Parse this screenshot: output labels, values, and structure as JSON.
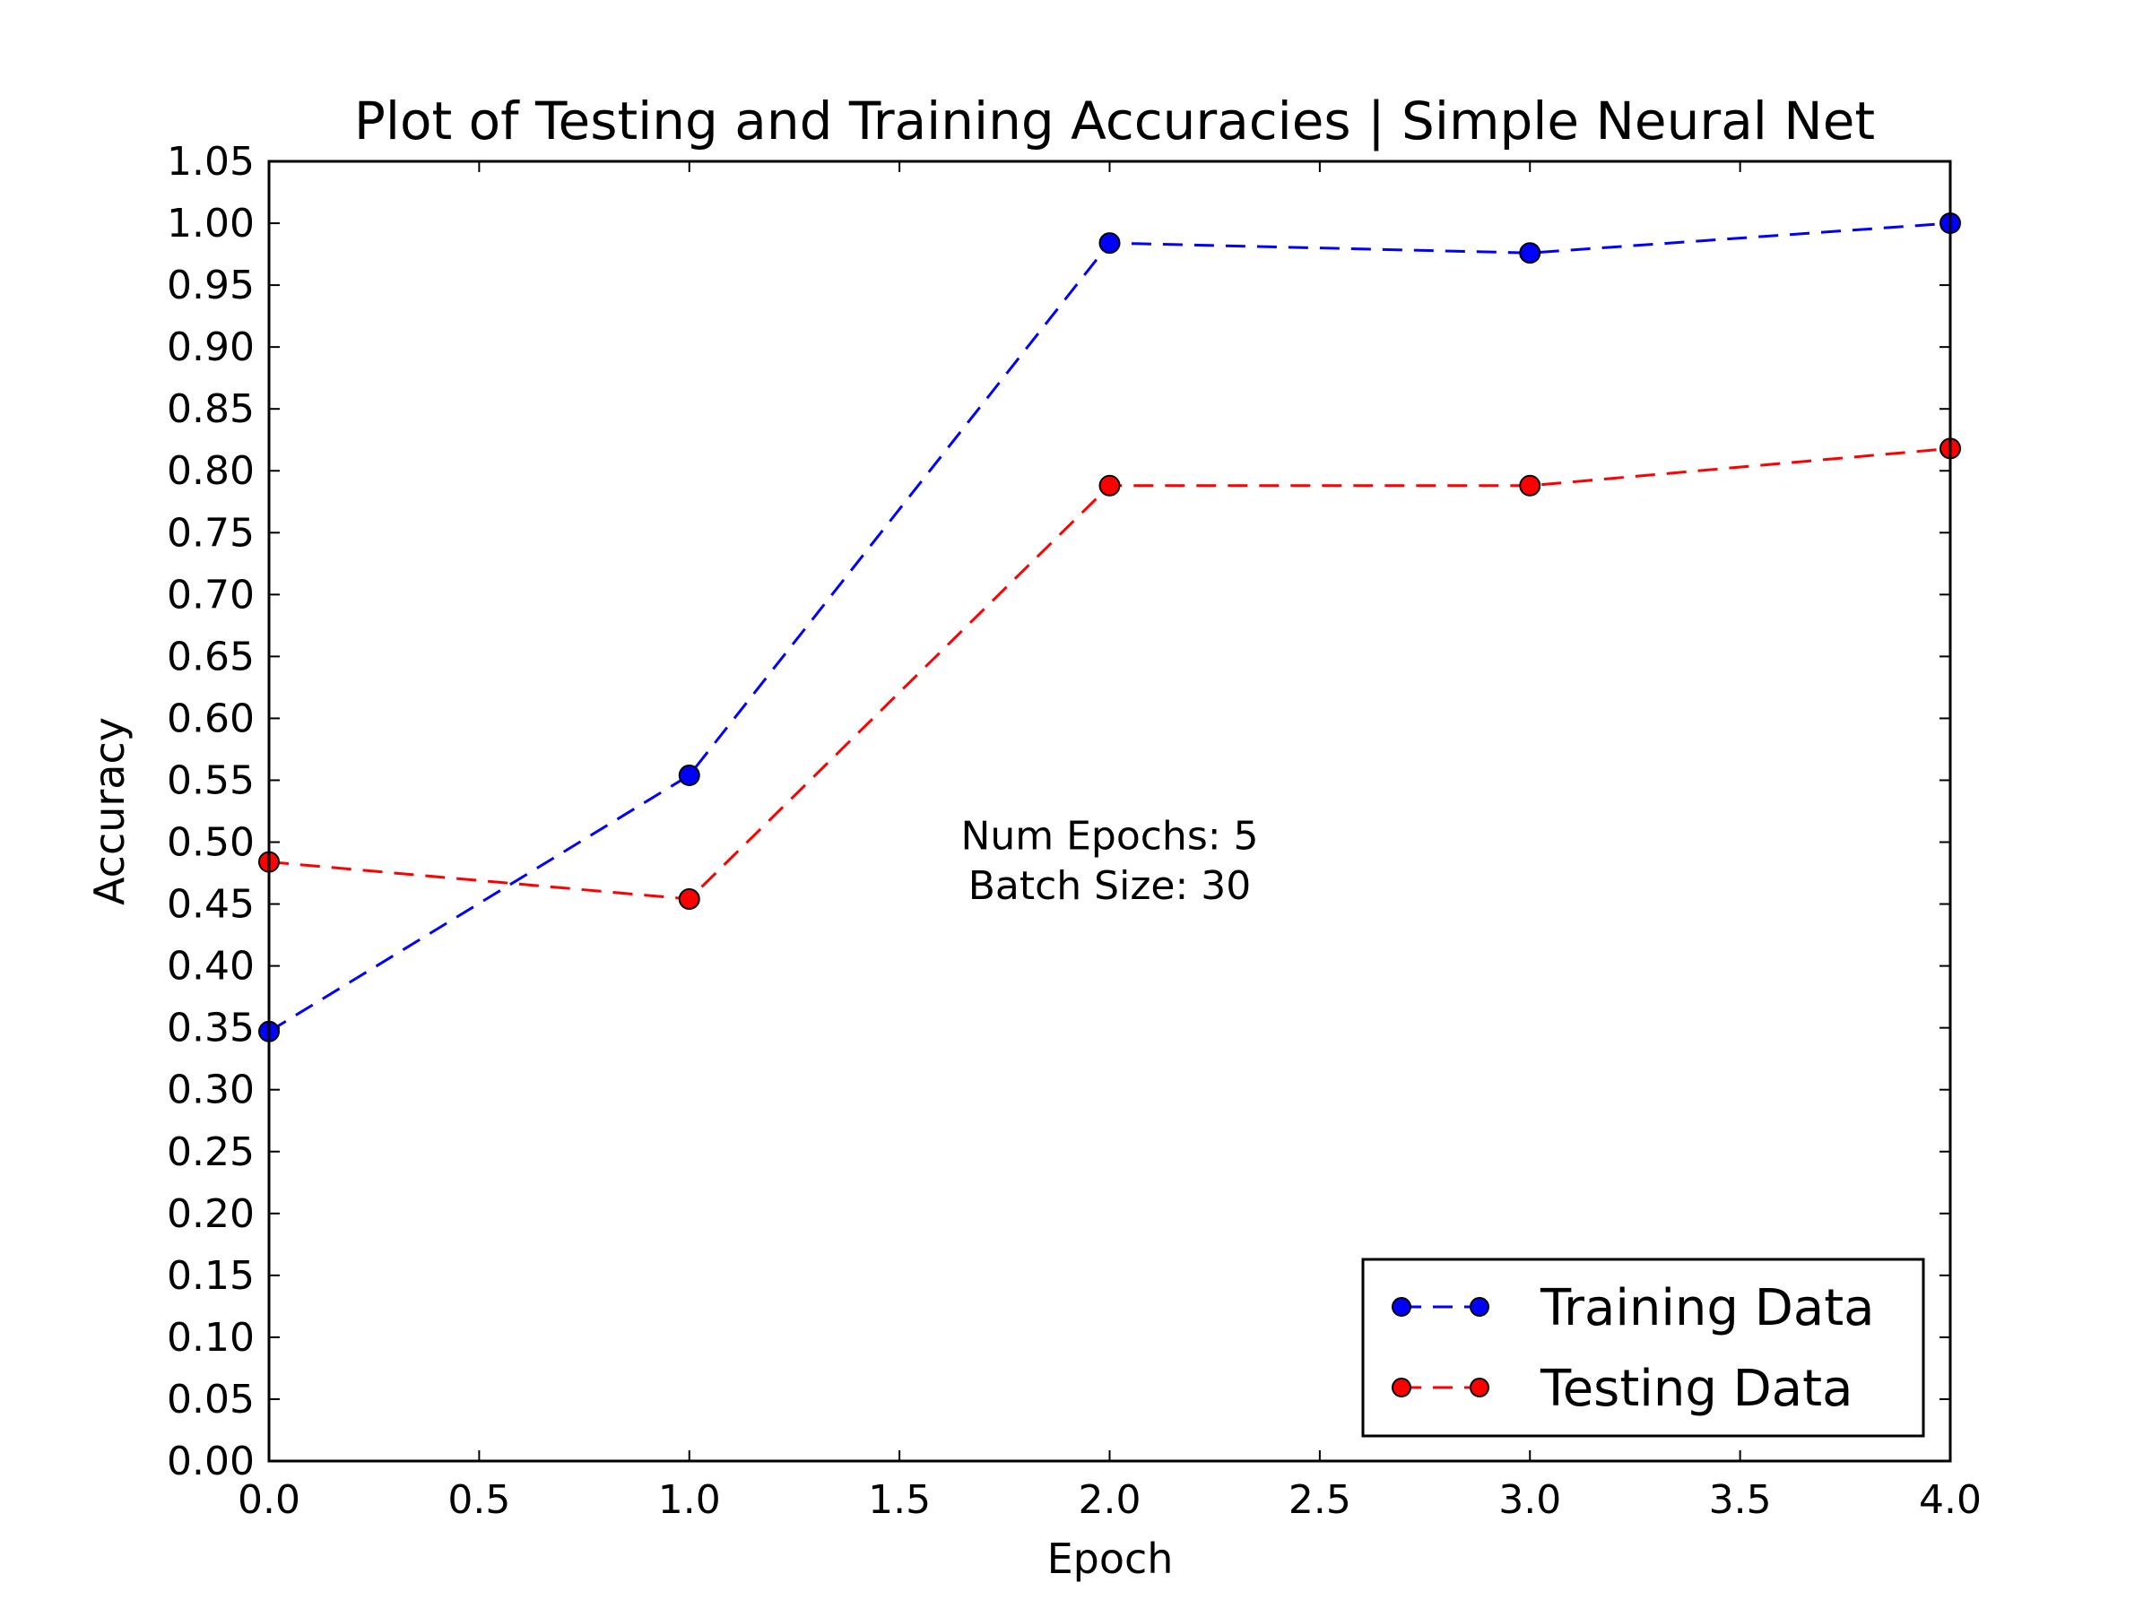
{
  "chart_data": {
    "type": "line",
    "title": "Plot of Testing and Training Accuracies | Simple Neural Net",
    "xlabel": "Epoch",
    "ylabel": "Accuracy",
    "xlim": [
      0.0,
      4.0
    ],
    "ylim": [
      0.0,
      1.05
    ],
    "x_ticks": [
      "0.0",
      "0.5",
      "1.0",
      "1.5",
      "2.0",
      "2.5",
      "3.0",
      "3.5",
      "4.0"
    ],
    "y_ticks": [
      "0.00",
      "0.05",
      "0.10",
      "0.15",
      "0.20",
      "0.25",
      "0.30",
      "0.35",
      "0.40",
      "0.45",
      "0.50",
      "0.55",
      "0.60",
      "0.65",
      "0.70",
      "0.75",
      "0.80",
      "0.85",
      "0.90",
      "0.95",
      "1.00",
      "1.05"
    ],
    "grid": false,
    "legend_position": "lower-right",
    "x": [
      0,
      1,
      2,
      3,
      4
    ],
    "series": [
      {
        "name": "Training Data",
        "color": "#0000ff",
        "line_style": "dashed",
        "marker": "circle",
        "values": [
          0.347,
          0.554,
          0.984,
          0.976,
          1.0
        ]
      },
      {
        "name": "Testing Data",
        "color": "#ff0000",
        "line_style": "dashed",
        "marker": "circle",
        "values": [
          0.484,
          0.454,
          0.788,
          0.788,
          0.818
        ]
      }
    ],
    "annotations": [
      {
        "text": "Num Epochs: 5",
        "x": 2.0,
        "y": 0.505
      },
      {
        "text": "Batch Size: 30",
        "x": 2.0,
        "y": 0.465
      }
    ]
  }
}
